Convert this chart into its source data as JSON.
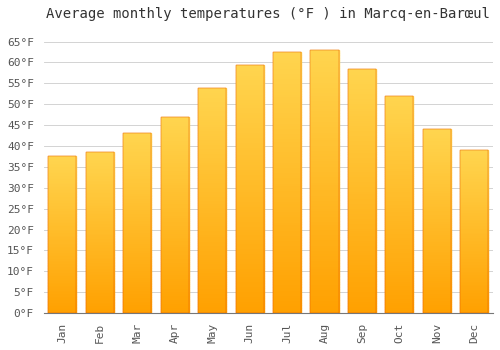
{
  "title": "Average monthly temperatures (°F ) in Marcq-en-Barœul",
  "months": [
    "Jan",
    "Feb",
    "Mar",
    "Apr",
    "May",
    "Jun",
    "Jul",
    "Aug",
    "Sep",
    "Oct",
    "Nov",
    "Dec"
  ],
  "values": [
    37.5,
    38.5,
    43.0,
    47.0,
    54.0,
    59.5,
    62.5,
    63.0,
    58.5,
    52.0,
    44.0,
    39.0
  ],
  "bar_color_top": "#FFD54F",
  "bar_color_bottom": "#FFA000",
  "bar_edge_color": "#E65100",
  "background_color": "#FFFFFF",
  "grid_color": "#CCCCCC",
  "yticks": [
    0,
    5,
    10,
    15,
    20,
    25,
    30,
    35,
    40,
    45,
    50,
    55,
    60,
    65
  ],
  "ylim": [
    0,
    68
  ],
  "title_fontsize": 10,
  "tick_fontsize": 8,
  "font_family": "monospace"
}
